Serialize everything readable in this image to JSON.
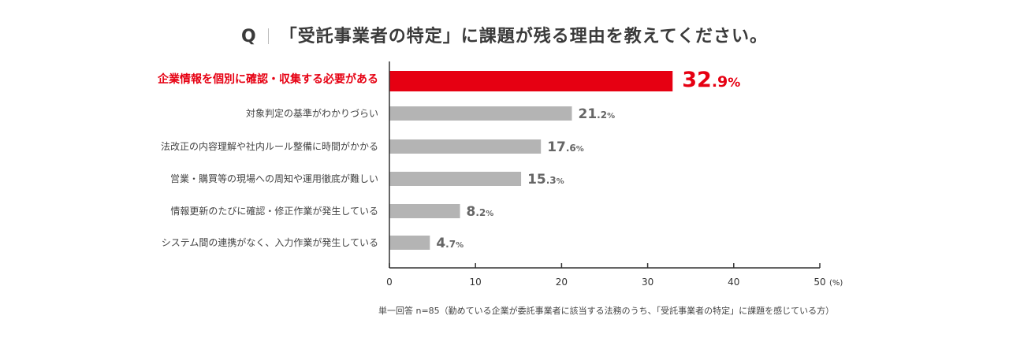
{
  "title": {
    "q_label": "Q",
    "text": "「受託事業者の特定」に課題が残る理由を教えてください。"
  },
  "footnote": "単一回答 n=85（勤めている企業が委託事業者に該当する法務のうち、「受託事業者の特定」に課題を感じている方）",
  "chart_data": {
    "type": "bar",
    "orientation": "horizontal",
    "categories": [
      "企業情報を個別に確認・収集する必要がある",
      "対象判定の基準がわかりづらい",
      "法改正の内容理解や社内ルール整備に時間がかかる",
      "営業・購買等の現場への周知や運用徹底が難しい",
      "情報更新のたびに確認・修正作業が発生している",
      "システム間の連携がなく、入力作業が発生している"
    ],
    "values": [
      32.9,
      21.2,
      17.6,
      15.3,
      8.2,
      4.7
    ],
    "value_labels": [
      "32.9",
      "21.2",
      "17.6",
      "15.3",
      "8.2",
      "4.7"
    ],
    "unit": "%",
    "xlim": [
      0,
      50
    ],
    "xticks": [
      "0",
      "10",
      "20",
      "30",
      "40",
      "50"
    ],
    "xunit": "(%)",
    "highlight_index": 0,
    "colors": {
      "highlight": "#e60012",
      "bar": "#b4b4b4",
      "axis": "#333333",
      "value": "#666666"
    },
    "grid": false
  }
}
